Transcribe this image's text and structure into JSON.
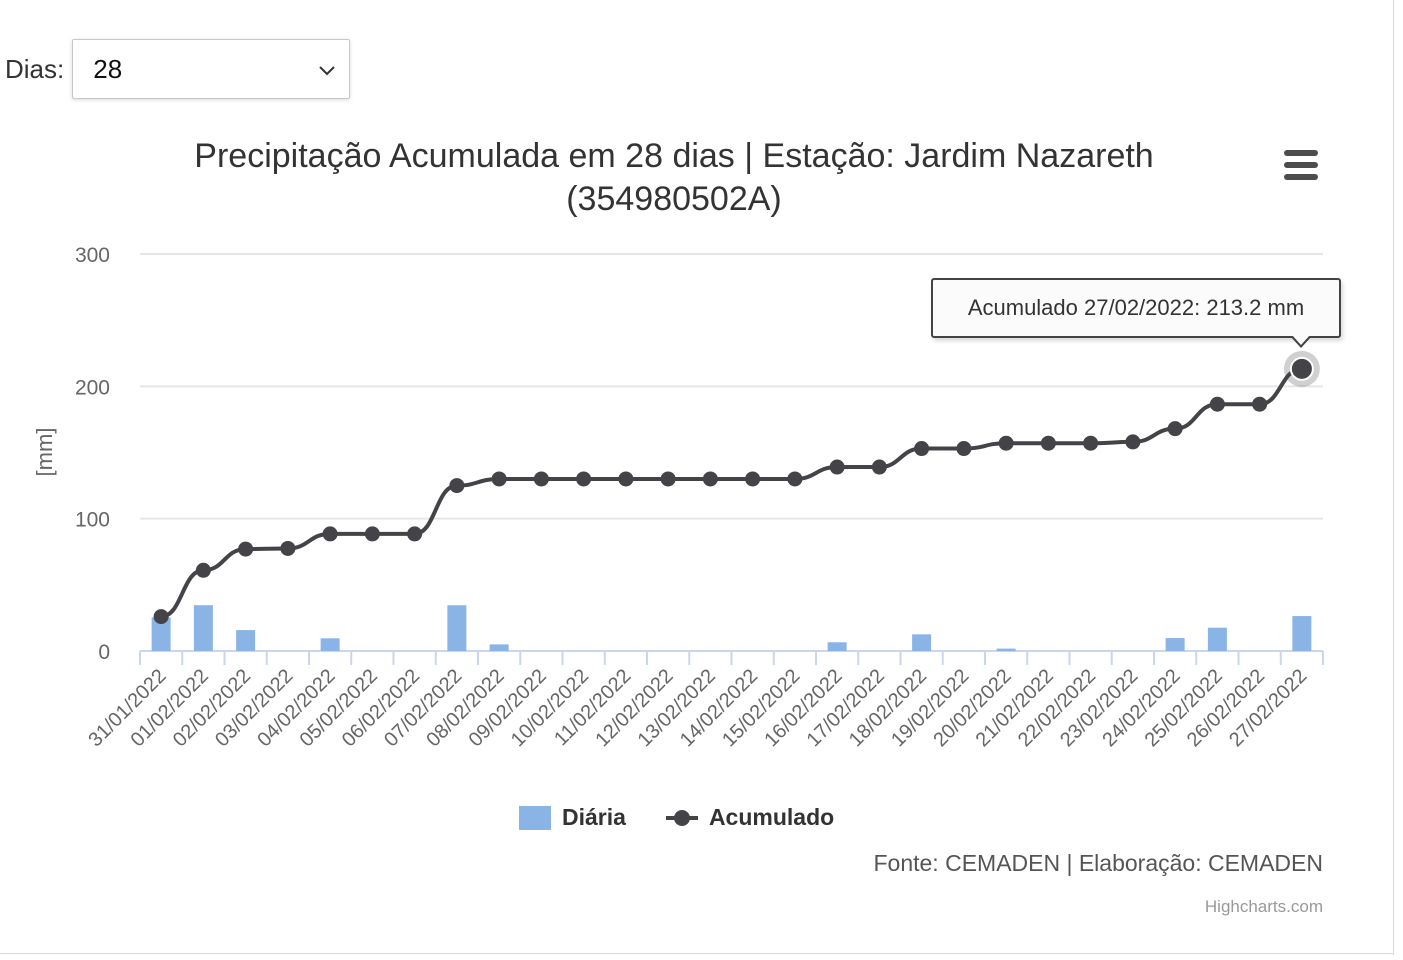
{
  "filter": {
    "label": "Dias:",
    "selected": "28"
  },
  "chart_data": {
    "type": "bar+line",
    "title": "Precipitação Acumulada em 28 dias | Estação: Jardim Nazareth",
    "title_line2": "(354980502A)",
    "ylabel": "[mm]",
    "ylim": [
      0,
      300
    ],
    "yticks": [
      0,
      100,
      200,
      300
    ],
    "grid": true,
    "legend_position": "bottom-center",
    "categories": [
      "31/01/2022",
      "01/02/2022",
      "02/02/2022",
      "03/02/2022",
      "04/02/2022",
      "05/02/2022",
      "06/02/2022",
      "07/02/2022",
      "08/02/2022",
      "09/02/2022",
      "10/02/2022",
      "11/02/2022",
      "12/02/2022",
      "13/02/2022",
      "14/02/2022",
      "15/02/2022",
      "16/02/2022",
      "17/02/2022",
      "18/02/2022",
      "19/02/2022",
      "20/02/2022",
      "21/02/2022",
      "22/02/2022",
      "23/02/2022",
      "24/02/2022",
      "25/02/2022",
      "26/02/2022",
      "27/02/2022"
    ],
    "series": [
      {
        "name": "Diária",
        "type": "bar",
        "color": "#8bb4e6",
        "values": [
          25.4,
          34.6,
          15.8,
          0,
          9.6,
          0,
          0,
          34.6,
          5.0,
          0,
          0,
          0,
          0,
          0,
          0,
          0,
          6.6,
          0,
          12.6,
          0,
          1.8,
          0,
          0,
          0,
          9.8,
          17.6,
          0,
          26.4
        ]
      },
      {
        "name": "Acumulado",
        "type": "line",
        "color": "#434348",
        "values": [
          26,
          61,
          77,
          77.5,
          88.5,
          88.5,
          88.5,
          125,
          130,
          130,
          130,
          130,
          130,
          130,
          130,
          130,
          139,
          139,
          153,
          153,
          157,
          157,
          157,
          158,
          168,
          186.5,
          186.5,
          213.2
        ]
      }
    ]
  },
  "tooltip": {
    "text": "Acumulado 27/02/2022: 213.2 mm"
  },
  "legend": {
    "items": [
      {
        "label": "Diária"
      },
      {
        "label": "Acumulado"
      }
    ]
  },
  "credits": {
    "source": "Fonte: CEMADEN | Elaboração: CEMADEN",
    "highcharts": "Highcharts.com"
  }
}
